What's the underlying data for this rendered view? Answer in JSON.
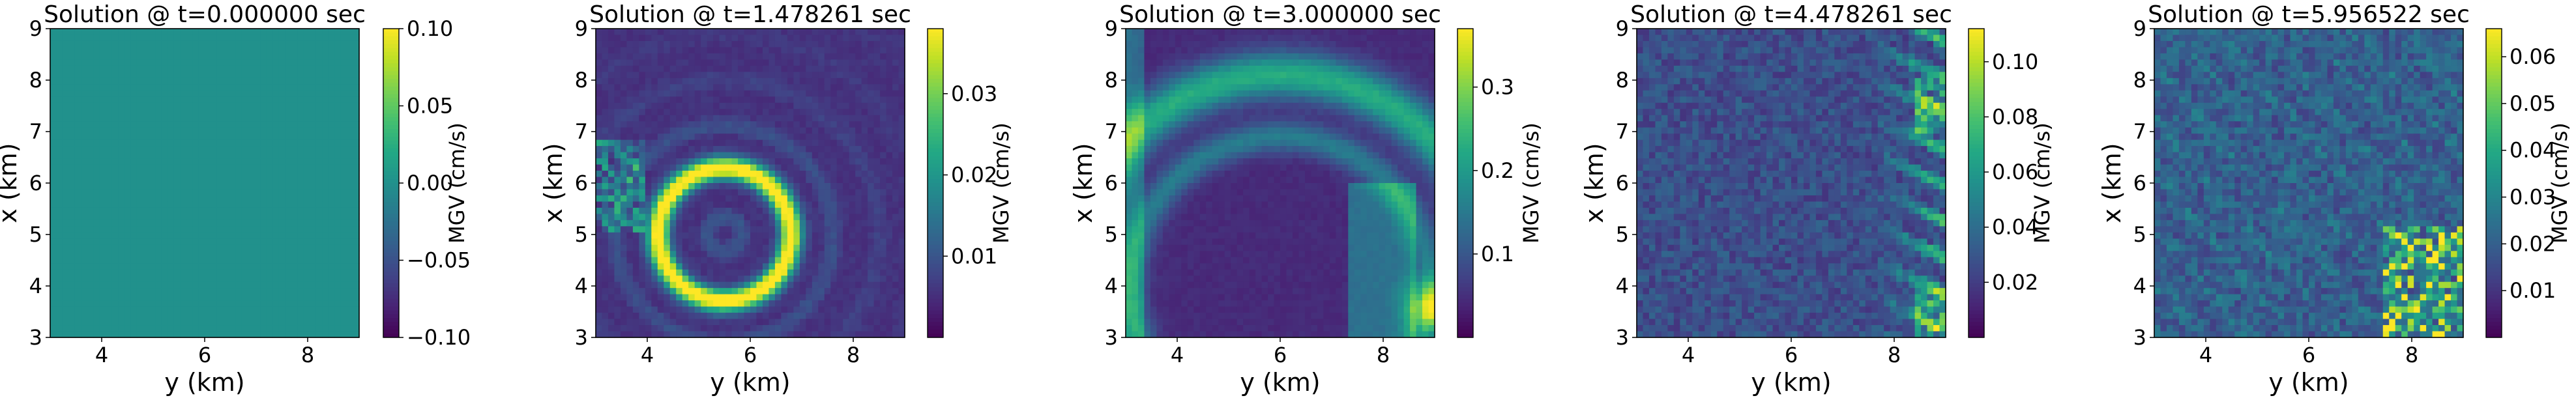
{
  "colormap": "viridis",
  "chart_data": [
    {
      "type": "heatmap",
      "title": "Solution @ t=0.000000 sec",
      "xlabel": "y (km)",
      "ylabel": "x (km)",
      "xlim": [
        3,
        9
      ],
      "ylim": [
        3,
        9
      ],
      "xticks": [
        "4",
        "6",
        "8"
      ],
      "yticks": [
        "3",
        "4",
        "5",
        "6",
        "7",
        "8",
        "9"
      ],
      "colorbar": {
        "label": "MGV (cm/s)",
        "range": [
          -0.1,
          0.1
        ],
        "ticks": [
          {
            "value": 0.1,
            "label": "0.10"
          },
          {
            "value": 0.05,
            "label": "0.05"
          },
          {
            "value": 0.0,
            "label": "0.00"
          },
          {
            "value": -0.05,
            "label": "−0.05"
          },
          {
            "value": -0.1,
            "label": "−0.10"
          }
        ]
      },
      "field": {
        "pattern": "uniform",
        "level": 0.5
      }
    },
    {
      "type": "heatmap",
      "title": "Solution @ t=1.478261 sec",
      "xlabel": "y (km)",
      "ylabel": "x (km)",
      "xlim": [
        3,
        9
      ],
      "ylim": [
        3,
        9
      ],
      "xticks": [
        "4",
        "6",
        "8"
      ],
      "yticks": [
        "3",
        "4",
        "5",
        "6",
        "7",
        "8",
        "9"
      ],
      "colorbar": {
        "label": "MGV (cm/s)",
        "range": [
          0,
          0.038
        ],
        "ticks": [
          {
            "value": 0.03,
            "label": "0.03"
          },
          {
            "value": 0.02,
            "label": "0.02"
          },
          {
            "value": 0.01,
            "label": "0.01"
          }
        ]
      },
      "field": {
        "pattern": "ring",
        "center": [
          5.5,
          5.0
        ],
        "radius": 1.3,
        "width": 0.22,
        "peak": 0.85,
        "background": 0.12
      }
    },
    {
      "type": "heatmap",
      "title": "Solution @ t=3.000000 sec",
      "xlabel": "y (km)",
      "ylabel": "x (km)",
      "xlim": [
        3,
        9
      ],
      "ylim": [
        3,
        9
      ],
      "xticks": [
        "4",
        "6",
        "8"
      ],
      "yticks": [
        "3",
        "4",
        "5",
        "6",
        "7",
        "8",
        "9"
      ],
      "colorbar": {
        "label": "MGV (cm/s)",
        "range": [
          0,
          0.37
        ],
        "ticks": [
          {
            "value": 0.3,
            "label": "0.3"
          },
          {
            "value": 0.2,
            "label": "0.2"
          },
          {
            "value": 0.1,
            "label": "0.1"
          }
        ]
      },
      "field": {
        "pattern": "arc",
        "center": [
          6.0,
          4.0
        ],
        "radius": 4.1,
        "width": 0.45,
        "peak": 0.5,
        "background": 0.1
      }
    },
    {
      "type": "heatmap",
      "title": "Solution @ t=4.478261 sec",
      "xlabel": "y (km)",
      "ylabel": "x (km)",
      "xlim": [
        3,
        9
      ],
      "ylim": [
        3,
        9
      ],
      "xticks": [
        "4",
        "6",
        "8"
      ],
      "yticks": [
        "3",
        "4",
        "5",
        "6",
        "7",
        "8",
        "9"
      ],
      "colorbar": {
        "label": "MGV (cm/s)",
        "range": [
          0,
          0.112
        ],
        "ticks": [
          {
            "value": 0.1,
            "label": "0.10"
          },
          {
            "value": 0.08,
            "label": "0.08"
          },
          {
            "value": 0.06,
            "label": "0.06"
          },
          {
            "value": 0.04,
            "label": "0.04"
          },
          {
            "value": 0.02,
            "label": "0.02"
          }
        ]
      },
      "field": {
        "pattern": "noise-right",
        "background": 0.15,
        "peak": 0.9
      }
    },
    {
      "type": "heatmap",
      "title": "Solution @ t=5.956522 sec",
      "xlabel": "y (km)",
      "ylabel": "x (km)",
      "xlim": [
        3,
        9
      ],
      "ylim": [
        3,
        9
      ],
      "xticks": [
        "4",
        "6",
        "8"
      ],
      "yticks": [
        "3",
        "4",
        "5",
        "6",
        "7",
        "8",
        "9"
      ],
      "colorbar": {
        "label": "MGV (cm/s)",
        "range": [
          0,
          0.066
        ],
        "ticks": [
          {
            "value": 0.06,
            "label": "0.06"
          },
          {
            "value": 0.05,
            "label": "0.05"
          },
          {
            "value": 0.04,
            "label": "0.04"
          },
          {
            "value": 0.03,
            "label": "0.03"
          },
          {
            "value": 0.02,
            "label": "0.02"
          },
          {
            "value": 0.01,
            "label": "0.01"
          }
        ]
      },
      "field": {
        "pattern": "noise-corner",
        "background": 0.18,
        "peak": 0.95
      }
    }
  ]
}
